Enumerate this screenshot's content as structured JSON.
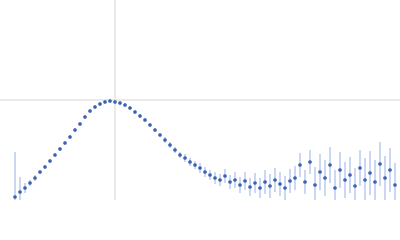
{
  "chart_data": {
    "type": "scatter",
    "xlim": [
      0,
      4
    ],
    "ylim": [
      0,
      2
    ],
    "xticks": [
      1.15
    ],
    "yticks": [
      1
    ],
    "grid": true,
    "series": [
      {
        "color": "#3a62b5",
        "error_color": "#aabfe8",
        "x": [
          0.15,
          0.2,
          0.25,
          0.3,
          0.35,
          0.4,
          0.45,
          0.5,
          0.55,
          0.6,
          0.65,
          0.7,
          0.75,
          0.8,
          0.85,
          0.9,
          0.95,
          1.0,
          1.05,
          1.1,
          1.15,
          1.2,
          1.25,
          1.3,
          1.35,
          1.4,
          1.45,
          1.5,
          1.55,
          1.6,
          1.65,
          1.7,
          1.75,
          1.8,
          1.85,
          1.9,
          1.95,
          2.0,
          2.05,
          2.1,
          2.15,
          2.2,
          2.25,
          2.3,
          2.35,
          2.4,
          2.45,
          2.5,
          2.55,
          2.6,
          2.65,
          2.7,
          2.75,
          2.8,
          2.85,
          2.9,
          2.95,
          3.0,
          3.05,
          3.1,
          3.15,
          3.2,
          3.25,
          3.3,
          3.35,
          3.4,
          3.45,
          3.5,
          3.55,
          3.6,
          3.65,
          3.7,
          3.75,
          3.8,
          3.85,
          3.9,
          3.95
        ],
        "values": [
          0.03,
          0.08,
          0.12,
          0.17,
          0.22,
          0.28,
          0.33,
          0.39,
          0.45,
          0.51,
          0.57,
          0.63,
          0.7,
          0.76,
          0.83,
          0.89,
          0.93,
          0.96,
          0.98,
          0.99,
          0.98,
          0.97,
          0.95,
          0.92,
          0.88,
          0.84,
          0.8,
          0.75,
          0.7,
          0.65,
          0.6,
          0.55,
          0.5,
          0.45,
          0.42,
          0.38,
          0.35,
          0.32,
          0.28,
          0.25,
          0.22,
          0.2,
          0.24,
          0.18,
          0.2,
          0.15,
          0.19,
          0.13,
          0.17,
          0.12,
          0.18,
          0.14,
          0.2,
          0.16,
          0.12,
          0.19,
          0.22,
          0.35,
          0.18,
          0.38,
          0.15,
          0.28,
          0.22,
          0.35,
          0.12,
          0.3,
          0.2,
          0.25,
          0.14,
          0.32,
          0.2,
          0.27,
          0.18,
          0.36,
          0.22,
          0.3,
          0.15
        ],
        "errors": [
          0.45,
          0.15,
          0.05,
          0.03,
          0.03,
          0.02,
          0.02,
          0.02,
          0.02,
          0.02,
          0.02,
          0.02,
          0.02,
          0.02,
          0.02,
          0.02,
          0.02,
          0.02,
          0.02,
          0.02,
          0.02,
          0.02,
          0.02,
          0.02,
          0.02,
          0.02,
          0.02,
          0.02,
          0.02,
          0.02,
          0.03,
          0.03,
          0.03,
          0.03,
          0.04,
          0.04,
          0.04,
          0.05,
          0.05,
          0.05,
          0.06,
          0.06,
          0.07,
          0.07,
          0.08,
          0.08,
          0.09,
          0.09,
          0.1,
          0.1,
          0.12,
          0.12,
          0.12,
          0.12,
          0.12,
          0.12,
          0.12,
          0.12,
          0.12,
          0.12,
          0.18,
          0.18,
          0.18,
          0.18,
          0.18,
          0.18,
          0.18,
          0.18,
          0.18,
          0.18,
          0.22,
          0.22,
          0.22,
          0.22,
          0.22,
          0.22,
          0.22
        ]
      }
    ]
  }
}
